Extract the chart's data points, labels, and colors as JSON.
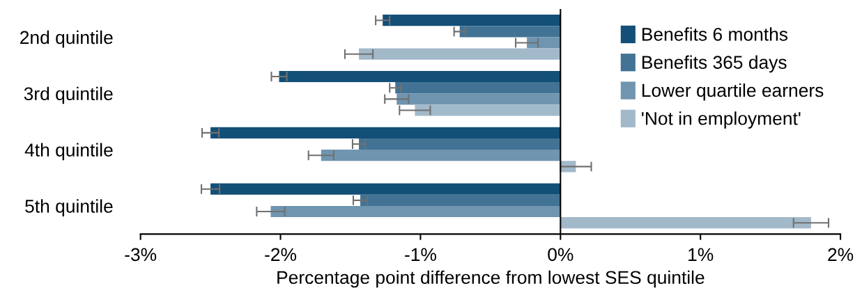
{
  "chart_data": {
    "type": "bar",
    "orientation": "horizontal",
    "xlabel": "Percentage point difference from lowest SES quintile",
    "categories": [
      "2nd quintile",
      "3rd quintile",
      "4th quintile",
      "5th quintile"
    ],
    "series": [
      {
        "name": "Benefits 6 months",
        "color": "#134f77",
        "values": [
          -1.27,
          -2.01,
          -2.5,
          -2.5
        ],
        "errors": [
          0.05,
          0.055,
          0.06,
          0.065
        ]
      },
      {
        "name": "Benefits 365 days",
        "color": "#427394",
        "values": [
          -0.72,
          -1.18,
          -1.44,
          -1.43
        ],
        "errors": [
          0.04,
          0.04,
          0.045,
          0.05
        ]
      },
      {
        "name": "Lower quartile earners",
        "color": "#6f95b0",
        "values": [
          -0.24,
          -1.17,
          -1.71,
          -2.07
        ],
        "errors": [
          0.08,
          0.085,
          0.09,
          0.1
        ]
      },
      {
        "name": "'Not in employment'",
        "color": "#a2b9ca",
        "values": [
          -1.44,
          -1.04,
          0.11,
          1.79
        ],
        "errors": [
          0.1,
          0.11,
          0.11,
          0.125
        ]
      }
    ],
    "xlim": [
      -3,
      2
    ],
    "xticks": [
      {
        "value": -3,
        "label": "-3%"
      },
      {
        "value": -2,
        "label": "-2%"
      },
      {
        "value": -1,
        "label": "-1%"
      },
      {
        "value": 0,
        "label": "0%"
      },
      {
        "value": 1,
        "label": "1%"
      },
      {
        "value": 2,
        "label": "2%"
      }
    ],
    "grid": false,
    "ref_lines": [
      {
        "axis": "x",
        "value": 0,
        "color": "#000000"
      }
    ],
    "legend": "top right"
  }
}
